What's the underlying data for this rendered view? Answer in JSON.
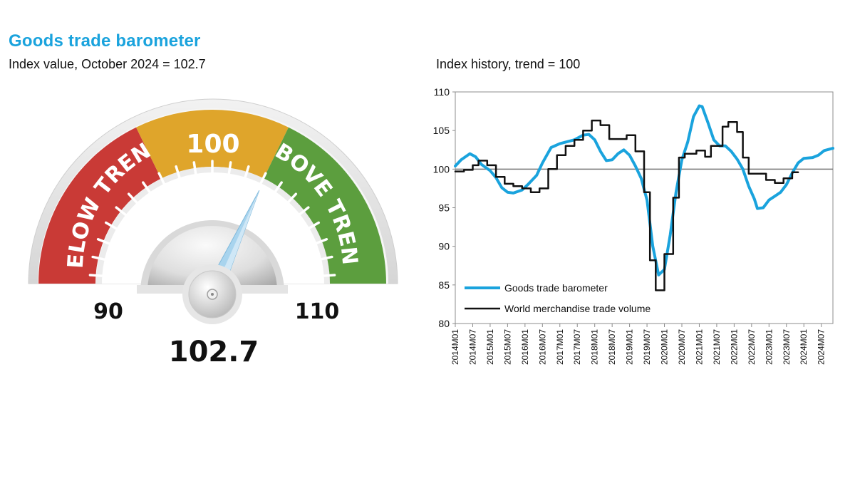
{
  "header": {
    "title": "Goods trade barometer",
    "subtitle": "Index value, October 2024 = 102.7",
    "chart_title": "Index history, trend = 100"
  },
  "gauge": {
    "value": 102.7,
    "value_label": "102.7",
    "min": 90,
    "max": 110,
    "min_label": "90",
    "max_label": "110",
    "mid_label": "100",
    "below_label": "BELOW TREND",
    "above_label": "ABOVE TREND",
    "colors": {
      "below": "#c93a36",
      "trend": "#dfa52b",
      "above": "#5c9e3e",
      "needle": "#a8d4ee"
    }
  },
  "chart_data": {
    "type": "line",
    "title": "Index history, trend = 100",
    "ylim": [
      80,
      110
    ],
    "yticks": [
      "80",
      "85",
      "90",
      "95",
      "100",
      "105",
      "110"
    ],
    "reference_line": 100,
    "x_tick_labels": [
      "2014M01",
      "2014M07",
      "2015M01",
      "2015M07",
      "2016M01",
      "2016M07",
      "2017M01",
      "2017M07",
      "2018M01",
      "2018M07",
      "2019M01",
      "2019M07",
      "2020M01",
      "2020M07",
      "2021M01",
      "2021M07",
      "2022M01",
      "2022M07",
      "2023M01",
      "2023M07",
      "2024M01",
      "2024M07"
    ],
    "x_range": [
      0,
      130
    ],
    "legend_position": "bottom-left",
    "series": [
      {
        "name": "Goods trade barometer",
        "color": "#1aa3dd",
        "points": [
          [
            0,
            100.4
          ],
          [
            2,
            101.2
          ],
          [
            5,
            102.0
          ],
          [
            7,
            101.6
          ],
          [
            9,
            100.6
          ],
          [
            12,
            99.8
          ],
          [
            14,
            98.9
          ],
          [
            16,
            97.6
          ],
          [
            18,
            97.0
          ],
          [
            20,
            96.9
          ],
          [
            23,
            97.3
          ],
          [
            25,
            98.0
          ],
          [
            28,
            99.2
          ],
          [
            30,
            100.8
          ],
          [
            33,
            102.8
          ],
          [
            36,
            103.3
          ],
          [
            38,
            103.5
          ],
          [
            41,
            103.8
          ],
          [
            44,
            104.4
          ],
          [
            46,
            104.5
          ],
          [
            48,
            103.8
          ],
          [
            50,
            102.3
          ],
          [
            52,
            101.1
          ],
          [
            54,
            101.2
          ],
          [
            56,
            102.0
          ],
          [
            58,
            102.5
          ],
          [
            60,
            101.8
          ],
          [
            62,
            100.4
          ],
          [
            64,
            98.8
          ],
          [
            66,
            96.0
          ],
          [
            68,
            90.0
          ],
          [
            70,
            86.3
          ],
          [
            72,
            87.0
          ],
          [
            74,
            91.5
          ],
          [
            76,
            97.0
          ],
          [
            78,
            101.2
          ],
          [
            80,
            103.5
          ],
          [
            82,
            106.8
          ],
          [
            84,
            108.2
          ],
          [
            85,
            108.1
          ],
          [
            87,
            106.0
          ],
          [
            89,
            103.8
          ],
          [
            91,
            103.0
          ],
          [
            93,
            103.0
          ],
          [
            95,
            102.3
          ],
          [
            97,
            101.3
          ],
          [
            99,
            100.0
          ],
          [
            101,
            97.8
          ],
          [
            103,
            96.1
          ],
          [
            104,
            94.9
          ],
          [
            106,
            95.0
          ],
          [
            108,
            96.0
          ],
          [
            110,
            96.5
          ],
          [
            112,
            97.0
          ],
          [
            114,
            98.0
          ],
          [
            116,
            99.5
          ],
          [
            118,
            100.8
          ],
          [
            120,
            101.4
          ],
          [
            123,
            101.5
          ],
          [
            125,
            101.8
          ],
          [
            127,
            102.4
          ],
          [
            130,
            102.7
          ]
        ]
      },
      {
        "name": "World merchandise trade volume",
        "color": "#111111",
        "points": [
          [
            0,
            99.7
          ],
          [
            3,
            99.7
          ],
          [
            3,
            99.9
          ],
          [
            6,
            99.9
          ],
          [
            6,
            100.5
          ],
          [
            8,
            100.5
          ],
          [
            8,
            101.1
          ],
          [
            11,
            101.1
          ],
          [
            11,
            100.5
          ],
          [
            14,
            100.5
          ],
          [
            14,
            99.0
          ],
          [
            17,
            99.0
          ],
          [
            17,
            98.1
          ],
          [
            20,
            98.1
          ],
          [
            20,
            97.8
          ],
          [
            23,
            97.8
          ],
          [
            23,
            97.5
          ],
          [
            26,
            97.5
          ],
          [
            26,
            97.0
          ],
          [
            29,
            97.0
          ],
          [
            29,
            97.5
          ],
          [
            32,
            97.5
          ],
          [
            32,
            100.0
          ],
          [
            35,
            100.0
          ],
          [
            35,
            101.8
          ],
          [
            38,
            101.8
          ],
          [
            38,
            103.0
          ],
          [
            41,
            103.0
          ],
          [
            41,
            103.8
          ],
          [
            44,
            103.8
          ],
          [
            44,
            105.0
          ],
          [
            47,
            105.0
          ],
          [
            47,
            106.3
          ],
          [
            50,
            106.3
          ],
          [
            50,
            105.7
          ],
          [
            53,
            105.7
          ],
          [
            53,
            103.9
          ],
          [
            59,
            103.9
          ],
          [
            59,
            104.4
          ],
          [
            62,
            104.4
          ],
          [
            62,
            102.3
          ],
          [
            65,
            102.3
          ],
          [
            65,
            97.0
          ],
          [
            67,
            97.0
          ],
          [
            67,
            88.2
          ],
          [
            69,
            88.2
          ],
          [
            69,
            84.3
          ],
          [
            72,
            84.3
          ],
          [
            72,
            89.0
          ],
          [
            75,
            89.0
          ],
          [
            75,
            96.3
          ],
          [
            77,
            96.3
          ],
          [
            77,
            101.5
          ],
          [
            79,
            101.5
          ],
          [
            79,
            102.0
          ],
          [
            83,
            102.0
          ],
          [
            83,
            102.4
          ],
          [
            86,
            102.4
          ],
          [
            86,
            101.6
          ],
          [
            88,
            101.6
          ],
          [
            88,
            103.0
          ],
          [
            92,
            103.0
          ],
          [
            92,
            105.5
          ],
          [
            94,
            105.5
          ],
          [
            94,
            106.1
          ],
          [
            97,
            106.1
          ],
          [
            97,
            104.8
          ],
          [
            99,
            104.8
          ],
          [
            99,
            101.5
          ],
          [
            101,
            101.5
          ],
          [
            101,
            99.4
          ],
          [
            107,
            99.4
          ],
          [
            107,
            98.6
          ],
          [
            110,
            98.6
          ],
          [
            110,
            98.2
          ],
          [
            113,
            98.2
          ],
          [
            113,
            98.8
          ],
          [
            116,
            98.8
          ],
          [
            116,
            99.6
          ],
          [
            118,
            99.6
          ]
        ]
      }
    ]
  }
}
